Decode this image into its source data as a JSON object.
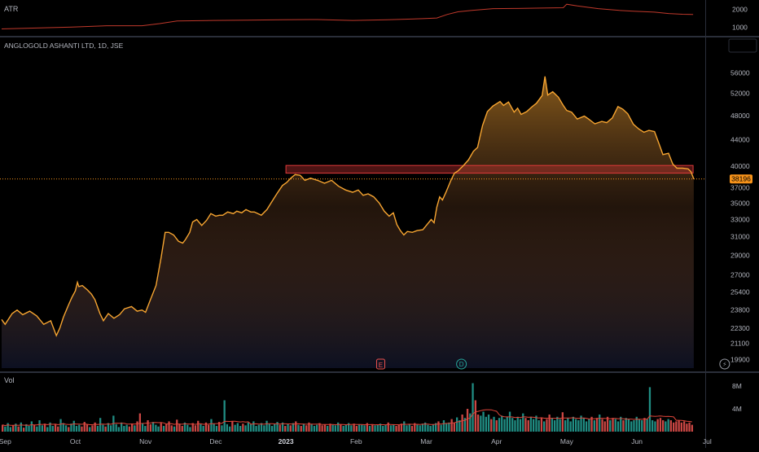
{
  "colors": {
    "background": "#000000",
    "panel_divider": "#2a2e39",
    "price_line": "#f7a531",
    "atr_line": "#c0392b",
    "resistance_zone": "#e03a3a",
    "last_price_badge": "#f7931a",
    "vol_up": "#26a69a",
    "vol_down": "#ef5350",
    "vol_ma": "#e0453a",
    "text": "#b2b5be"
  },
  "atr_panel": {
    "label": "ATR",
    "ticks": [
      "2000",
      "1000"
    ]
  },
  "main_panel": {
    "symbol_label": "ANGLOGOLD ASHANTI LTD, 1D, JSE",
    "last_price_label": "38196",
    "event_markers": [
      {
        "symbol": "E",
        "month_position": 5.4
      },
      {
        "symbol": "D",
        "month_position": 6.55
      },
      {
        "symbol": "⚡",
        "month_position": 10.3
      }
    ]
  },
  "volume_panel": {
    "label": "Vol",
    "ticks": [
      "8M",
      "4M"
    ]
  },
  "time_axis": {
    "labels": [
      "Sep",
      "Oct",
      "Nov",
      "Dec",
      "2023",
      "Feb",
      "Mar",
      "Apr",
      "May",
      "Jun",
      "Jul"
    ]
  },
  "chart_data": {
    "type": "area",
    "title": "ANGLOGOLD ASHANTI LTD, 1D, JSE",
    "x_unit": "months since Sep 2022 start",
    "y_axis_scale": "log",
    "y_ticks": [
      56000,
      52000,
      48000,
      44000,
      40000,
      37000,
      35000,
      33000,
      31000,
      29000,
      27000,
      25400,
      23800,
      22300,
      21100,
      19900
    ],
    "ylim": [
      19300,
      60000
    ],
    "series": [
      {
        "name": "Close",
        "points": [
          [
            0.0,
            23000
          ],
          [
            0.05,
            22600
          ],
          [
            0.15,
            23500
          ],
          [
            0.22,
            23800
          ],
          [
            0.3,
            23400
          ],
          [
            0.4,
            23700
          ],
          [
            0.5,
            23300
          ],
          [
            0.6,
            22600
          ],
          [
            0.7,
            22900
          ],
          [
            0.78,
            21700
          ],
          [
            0.83,
            22300
          ],
          [
            0.88,
            23200
          ],
          [
            0.95,
            24200
          ],
          [
            1.0,
            24900
          ],
          [
            1.05,
            25500
          ],
          [
            1.08,
            26300
          ],
          [
            1.1,
            25900
          ],
          [
            1.15,
            26000
          ],
          [
            1.22,
            25600
          ],
          [
            1.28,
            25200
          ],
          [
            1.33,
            24700
          ],
          [
            1.4,
            23500
          ],
          [
            1.45,
            22900
          ],
          [
            1.52,
            23500
          ],
          [
            1.6,
            23100
          ],
          [
            1.68,
            23400
          ],
          [
            1.75,
            23900
          ],
          [
            1.85,
            24100
          ],
          [
            1.93,
            23700
          ],
          [
            2.0,
            23800
          ],
          [
            2.05,
            23600
          ],
          [
            2.12,
            24700
          ],
          [
            2.2,
            26000
          ],
          [
            2.27,
            28700
          ],
          [
            2.33,
            31500
          ],
          [
            2.38,
            31500
          ],
          [
            2.45,
            31200
          ],
          [
            2.52,
            30500
          ],
          [
            2.58,
            30300
          ],
          [
            2.62,
            30700
          ],
          [
            2.68,
            31500
          ],
          [
            2.72,
            32700
          ],
          [
            2.78,
            33000
          ],
          [
            2.85,
            32300
          ],
          [
            2.92,
            32900
          ],
          [
            2.98,
            33700
          ],
          [
            3.05,
            33400
          ],
          [
            3.1,
            33500
          ],
          [
            3.15,
            33500
          ],
          [
            3.22,
            33900
          ],
          [
            3.3,
            33700
          ],
          [
            3.35,
            34000
          ],
          [
            3.42,
            33800
          ],
          [
            3.48,
            34200
          ],
          [
            3.55,
            33900
          ],
          [
            3.6,
            33900
          ],
          [
            3.7,
            33500
          ],
          [
            3.78,
            34200
          ],
          [
            3.85,
            35200
          ],
          [
            3.92,
            36200
          ],
          [
            4.0,
            37300
          ],
          [
            4.06,
            37700
          ],
          [
            4.12,
            38300
          ],
          [
            4.18,
            38800
          ],
          [
            4.25,
            38700
          ],
          [
            4.32,
            38000
          ],
          [
            4.4,
            38300
          ],
          [
            4.5,
            38000
          ],
          [
            4.6,
            37600
          ],
          [
            4.7,
            38000
          ],
          [
            4.8,
            37200
          ],
          [
            4.9,
            36700
          ],
          [
            5.0,
            36400
          ],
          [
            5.08,
            36700
          ],
          [
            5.15,
            36000
          ],
          [
            5.22,
            36200
          ],
          [
            5.3,
            35800
          ],
          [
            5.38,
            35000
          ],
          [
            5.45,
            34000
          ],
          [
            5.52,
            33400
          ],
          [
            5.58,
            33800
          ],
          [
            5.63,
            32400
          ],
          [
            5.68,
            31700
          ],
          [
            5.73,
            31200
          ],
          [
            5.78,
            31600
          ],
          [
            5.85,
            31500
          ],
          [
            5.92,
            31700
          ],
          [
            6.0,
            31800
          ],
          [
            6.06,
            32400
          ],
          [
            6.12,
            33000
          ],
          [
            6.16,
            32600
          ],
          [
            6.2,
            34500
          ],
          [
            6.24,
            35800
          ],
          [
            6.28,
            35400
          ],
          [
            6.33,
            36400
          ],
          [
            6.4,
            38000
          ],
          [
            6.45,
            39000
          ],
          [
            6.5,
            39300
          ],
          [
            6.58,
            40100
          ],
          [
            6.65,
            40900
          ],
          [
            6.72,
            42200
          ],
          [
            6.78,
            42800
          ],
          [
            6.85,
            46300
          ],
          [
            6.92,
            48700
          ],
          [
            7.0,
            49700
          ],
          [
            7.1,
            50500
          ],
          [
            7.15,
            49800
          ],
          [
            7.22,
            50400
          ],
          [
            7.3,
            48600
          ],
          [
            7.35,
            49300
          ],
          [
            7.4,
            48200
          ],
          [
            7.48,
            48700
          ],
          [
            7.55,
            49500
          ],
          [
            7.62,
            50200
          ],
          [
            7.7,
            51600
          ],
          [
            7.74,
            55300
          ],
          [
            7.78,
            51700
          ],
          [
            7.85,
            52300
          ],
          [
            7.93,
            51300
          ],
          [
            8.0,
            49800
          ],
          [
            8.05,
            48900
          ],
          [
            8.12,
            48600
          ],
          [
            8.2,
            47400
          ],
          [
            8.3,
            47900
          ],
          [
            8.35,
            47500
          ],
          [
            8.45,
            46600
          ],
          [
            8.55,
            47000
          ],
          [
            8.62,
            46800
          ],
          [
            8.7,
            47600
          ],
          [
            8.78,
            49600
          ],
          [
            8.85,
            49100
          ],
          [
            8.92,
            48300
          ],
          [
            9.0,
            46500
          ],
          [
            9.08,
            45700
          ],
          [
            9.15,
            45200
          ],
          [
            9.22,
            45500
          ],
          [
            9.3,
            45300
          ],
          [
            9.36,
            43500
          ],
          [
            9.42,
            41700
          ],
          [
            9.5,
            41900
          ],
          [
            9.56,
            40300
          ],
          [
            9.62,
            39700
          ],
          [
            9.7,
            39700
          ],
          [
            9.78,
            39600
          ],
          [
            9.82,
            39200
          ],
          [
            9.86,
            38200
          ]
        ]
      }
    ],
    "resistance_zone": {
      "x_start": 4.05,
      "x_end": 9.85,
      "y_low": 39000,
      "y_high": 40100
    },
    "last_price": 38196,
    "atr": {
      "ylim": [
        600,
        2400
      ],
      "ticks": [
        2000,
        1000
      ],
      "points": [
        [
          0.0,
          900
        ],
        [
          0.5,
          950
        ],
        [
          1.0,
          1000
        ],
        [
          1.5,
          1080
        ],
        [
          2.0,
          1080
        ],
        [
          2.25,
          1200
        ],
        [
          2.5,
          1350
        ],
        [
          3.0,
          1380
        ],
        [
          3.5,
          1400
        ],
        [
          4.0,
          1420
        ],
        [
          4.5,
          1430
        ],
        [
          5.0,
          1380
        ],
        [
          5.5,
          1420
        ],
        [
          6.0,
          1480
        ],
        [
          6.2,
          1520
        ],
        [
          6.35,
          1720
        ],
        [
          6.5,
          1870
        ],
        [
          6.7,
          1950
        ],
        [
          7.0,
          2050
        ],
        [
          7.3,
          2060
        ],
        [
          7.7,
          2080
        ],
        [
          8.0,
          2100
        ],
        [
          8.05,
          2300
        ],
        [
          8.2,
          2200
        ],
        [
          8.5,
          2050
        ],
        [
          8.8,
          1950
        ],
        [
          9.0,
          1900
        ],
        [
          9.3,
          1850
        ],
        [
          9.5,
          1770
        ],
        [
          9.7,
          1730
        ],
        [
          9.85,
          1720
        ]
      ]
    },
    "volume": {
      "unit": "shares",
      "ylim": [
        0,
        10000000
      ],
      "ticks": [
        8000000,
        4000000
      ],
      "bars": [
        1.2,
        0.9,
        1.5,
        0.8,
        1.1,
        1.4,
        0.9,
        1.6,
        0.7,
        1.3,
        1.0,
        1.8,
        1.2,
        0.9,
        2.0,
        1.1,
        1.4,
        0.8,
        1.6,
        1.0,
        1.3,
        0.9,
        2.2,
        1.5,
        1.1,
        0.8,
        1.4,
        1.9,
        1.0,
        1.2,
        0.9,
        1.7,
        1.3,
        0.8,
        1.1,
        1.6,
        1.0,
        2.4,
        1.2,
        0.9,
        1.5,
        1.1,
        2.8,
        1.3,
        0.8,
        1.6,
        1.0,
        1.2,
        0.9,
        1.4,
        1.1,
        1.8,
        3.2,
        1.5,
        1.0,
        2.0,
        1.3,
        1.7,
        1.2,
        0.9,
        1.5,
        1.0,
        1.3,
        1.8,
        1.1,
        0.9,
        2.1,
        1.4,
        1.0,
        1.6,
        1.2,
        0.8,
        1.5,
        1.1,
        1.9,
        1.3,
        1.0,
        1.6,
        1.2,
        2.2,
        1.4,
        1.0,
        1.7,
        1.1,
        5.5,
        1.3,
        0.9,
        1.8,
        1.2,
        1.5,
        1.0,
        1.4,
        1.1,
        1.6,
        1.3,
        1.8,
        1.0,
        1.2,
        1.5,
        1.1,
        1.9,
        1.4,
        1.0,
        1.3,
        1.7,
        1.2,
        1.6,
        1.0,
        1.3,
        1.1,
        1.5,
        1.8,
        1.2,
        1.0,
        1.4,
        1.1,
        1.6,
        1.3,
        1.0,
        1.2,
        1.5,
        1.1,
        1.3,
        1.0,
        1.4,
        1.2,
        1.1,
        1.6,
        1.3,
        1.0,
        1.2,
        1.5,
        1.1,
        1.4,
        1.0,
        1.3,
        1.2,
        1.1,
        1.5,
        1.0,
        1.3,
        1.1,
        1.2,
        1.4,
        1.0,
        1.2,
        1.6,
        1.1,
        1.3,
        1.0,
        1.2,
        1.4,
        1.8,
        1.1,
        1.3,
        1.0,
        1.5,
        1.2,
        1.1,
        1.4,
        1.6,
        1.2,
        1.0,
        1.3,
        1.5,
        1.8,
        1.2,
        2.0,
        1.4,
        1.6,
        2.2,
        1.5,
        2.5,
        2.0,
        3.0,
        2.4,
        4.0,
        3.2,
        8.5,
        5.5,
        3.0,
        2.8,
        3.5,
        2.6,
        3.0,
        2.2,
        2.6,
        2.0,
        2.4,
        2.8,
        2.2,
        2.6,
        3.5,
        2.4,
        2.0,
        2.6,
        2.2,
        3.2,
        2.4,
        2.0,
        2.6,
        2.2,
        2.8,
        2.0,
        2.4,
        1.8,
        2.2,
        3.0,
        2.4,
        2.0,
        2.6,
        2.2,
        3.4,
        2.0,
        2.4,
        1.8,
        2.6,
        2.2,
        2.0,
        2.8,
        2.4,
        1.8,
        2.2,
        2.6,
        2.0,
        2.4,
        3.0,
        2.2,
        1.8,
        2.6,
        2.0,
        2.4,
        2.2,
        1.8,
        2.6,
        2.0,
        2.4,
        2.2,
        1.8,
        2.0,
        2.6,
        2.2,
        2.0,
        2.4,
        2.2,
        7.8,
        2.0,
        1.8,
        2.2,
        2.4,
        2.0,
        1.8,
        2.2,
        2.0,
        1.6,
        1.8,
        2.0,
        1.6,
        1.8,
        1.4,
        1.6,
        1.2
      ]
    }
  }
}
